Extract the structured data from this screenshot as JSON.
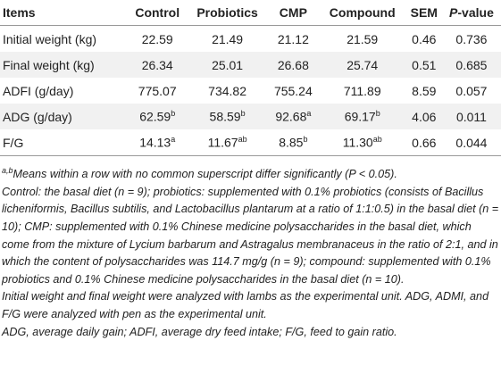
{
  "table": {
    "columns": [
      "Items",
      "Control",
      "Probiotics",
      "CMP",
      "Compound",
      "SEM",
      {
        "italic": "P",
        "text": "-value"
      }
    ],
    "rows": [
      [
        "Initial weight (kg)",
        "22.59",
        "21.49",
        "21.12",
        "21.59",
        "0.46",
        "0.736"
      ],
      [
        "Final weight (kg)",
        "26.34",
        "25.01",
        "26.68",
        "25.74",
        "0.51",
        "0.685"
      ],
      [
        "ADFI (g/day)",
        "775.07",
        "734.82",
        "755.24",
        "711.89",
        "8.59",
        "0.057"
      ],
      [
        "ADG (g/day)",
        {
          "text": "62.59",
          "sup": "b"
        },
        {
          "text": "58.59",
          "sup": "b"
        },
        {
          "text": "92.68",
          "sup": "a"
        },
        {
          "text": "69.17",
          "sup": "b"
        },
        "4.06",
        "0.011"
      ],
      [
        "F/G",
        {
          "text": "14.13",
          "sup": "a"
        },
        {
          "text": "11.67",
          "sup": "ab"
        },
        {
          "text": "8.85",
          "sup": "b"
        },
        {
          "text": "11.30",
          "sup": "ab"
        },
        "0.66",
        "0.044"
      ]
    ]
  },
  "notes": [
    {
      "sup": "a,b",
      "text": "Means within a row with no common superscript differ significantly (P < 0.05)."
    },
    "Control: the basal diet (n = 9); probiotics: supplemented with 0.1% probiotics (consists of Bacillus licheniformis, Bacillus subtilis, and Lactobacillus plantarum at a ratio of 1:1:0.5) in the basal diet (n = 10); CMP: supplemented with 0.1% Chinese medicine polysaccharides in the basal diet, which come from the mixture of Lycium barbarum and Astragalus membranaceus in the ratio of 2:1, and in which the content of polysaccharides was 114.7 mg/g (n = 9); compound: supplemented with 0.1% probiotics and 0.1% Chinese medicine polysaccharides in the basal diet (n = 10).",
    "Initial weight and final weight were analyzed with lambs as the experimental unit. ADG, ADMI, and F/G were analyzed with pen as the experimental unit.",
    "ADG, average daily gain; ADFI, average dry feed intake; F/G, feed to gain ratio."
  ]
}
